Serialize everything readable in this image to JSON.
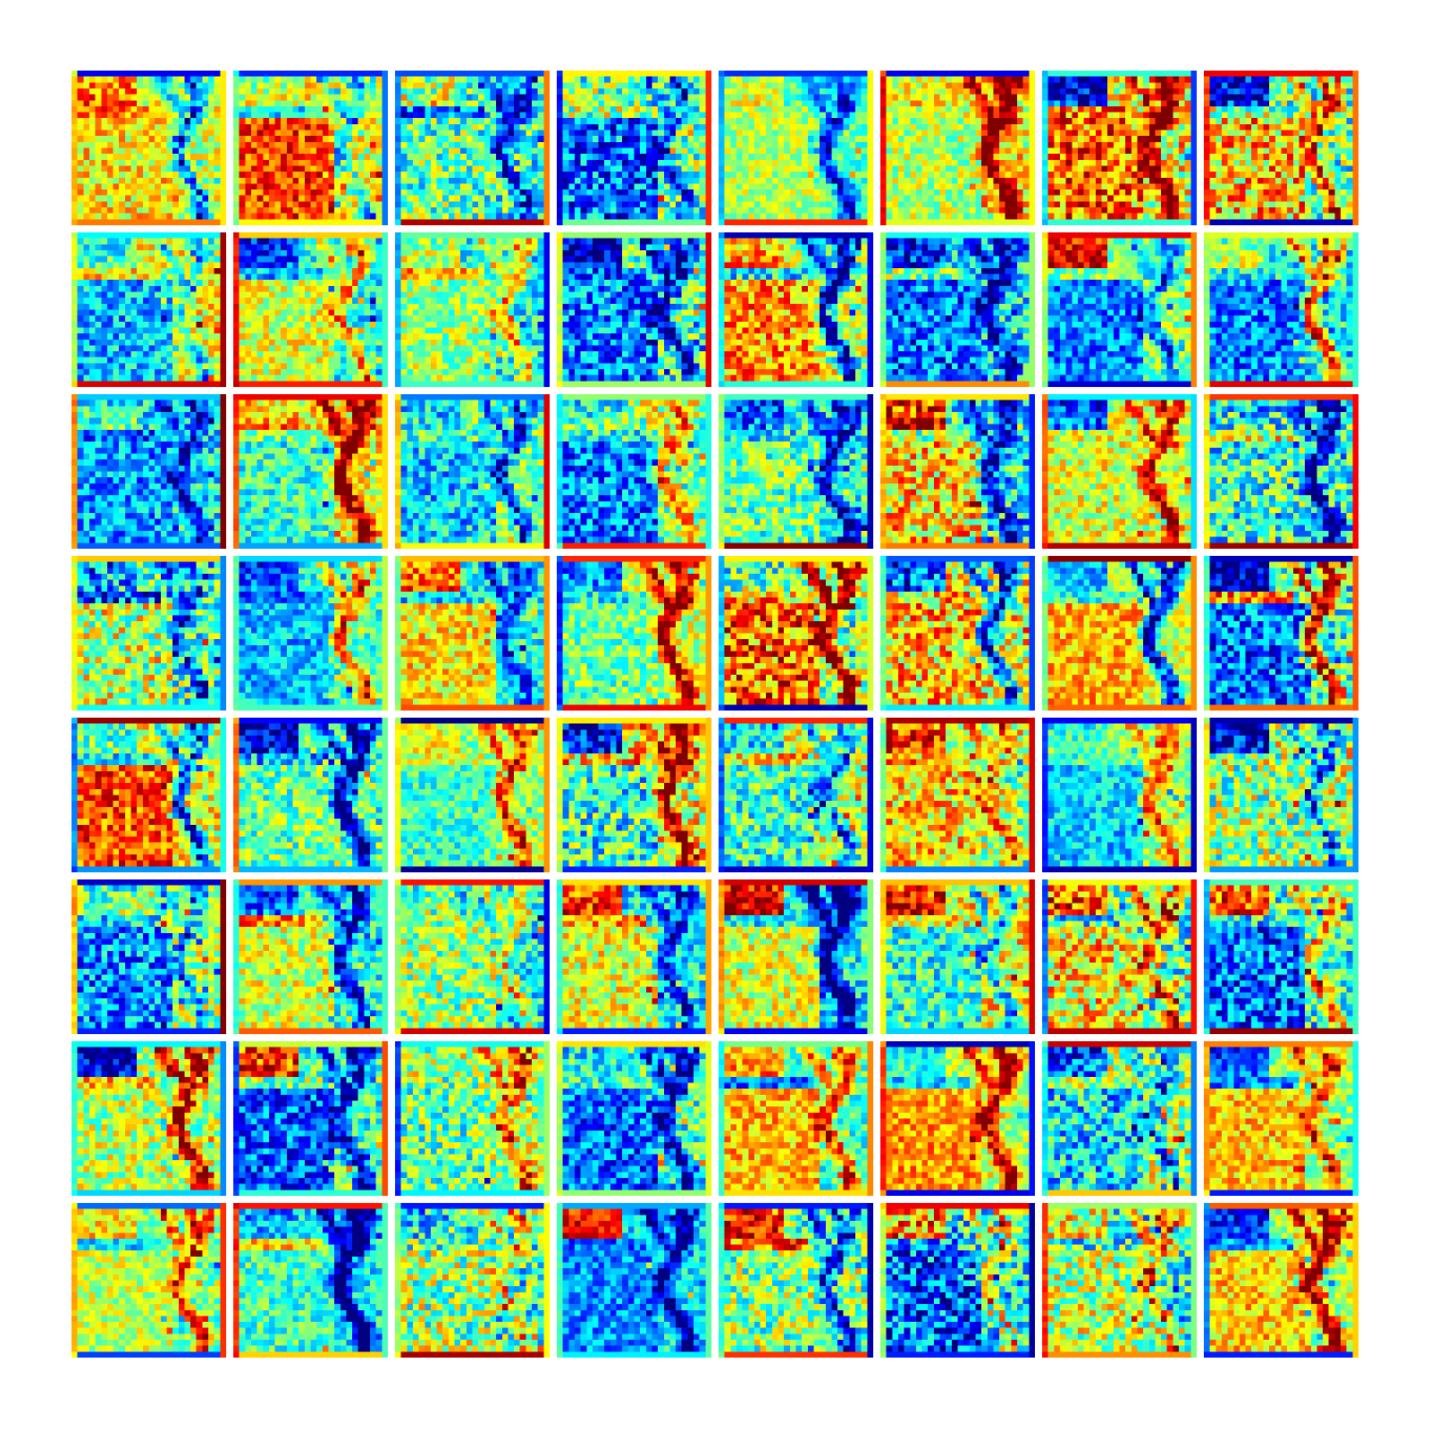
{
  "figure": {
    "description_kind": "feature-map-grid",
    "rows": 8,
    "cols": 8,
    "tile_resolution": 26,
    "colormap": "jet",
    "colormap_stops": [
      "#00007f",
      "#0000ff",
      "#007fff",
      "#00ffff",
      "#7fff7f",
      "#ffff00",
      "#ff7f00",
      "#ff0000",
      "#7f0000"
    ],
    "background": "#ffffff"
  }
}
